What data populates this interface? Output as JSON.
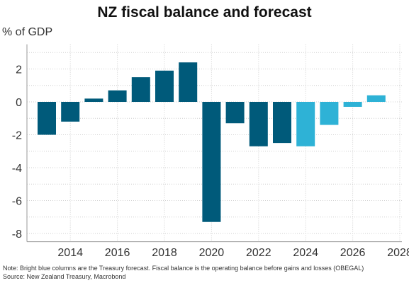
{
  "colors": {
    "actual": "#005a7a",
    "forecast": "#2eb2d6",
    "grid": "#cfcfcf",
    "axis": "#9a9a9a"
  },
  "chart_data": {
    "type": "bar",
    "title": "NZ fiscal balance and forecast",
    "ylabel": "% of GDP",
    "xlabel": "",
    "ylim": [
      -8.5,
      3.5
    ],
    "yticks": [
      2,
      0,
      -2,
      -4,
      -6,
      -8
    ],
    "xticks": [
      "2014",
      "2016",
      "2018",
      "2020",
      "2022",
      "2024",
      "2026",
      "2028"
    ],
    "categories": [
      "2013",
      "2014",
      "2015",
      "2016",
      "2017",
      "2018",
      "2019",
      "2020",
      "2021",
      "2022",
      "2023",
      "2024",
      "2025",
      "2026",
      "2027"
    ],
    "values": [
      -2.0,
      -1.2,
      0.2,
      0.7,
      1.5,
      1.9,
      2.4,
      -7.3,
      -1.3,
      -2.7,
      -2.5,
      -2.7,
      -1.4,
      -0.3,
      0.4
    ],
    "forecast": [
      false,
      false,
      false,
      false,
      false,
      false,
      false,
      false,
      false,
      false,
      false,
      true,
      true,
      true,
      true
    ],
    "grid": true,
    "legend": "none"
  },
  "notes": {
    "note": "Note: Bright blue columns are the Treasury forecast. Fiscal balance is the operating balance before gains and losses (OBEGAL)",
    "source": "Source: New Zealand Treasury, Macrobond"
  }
}
